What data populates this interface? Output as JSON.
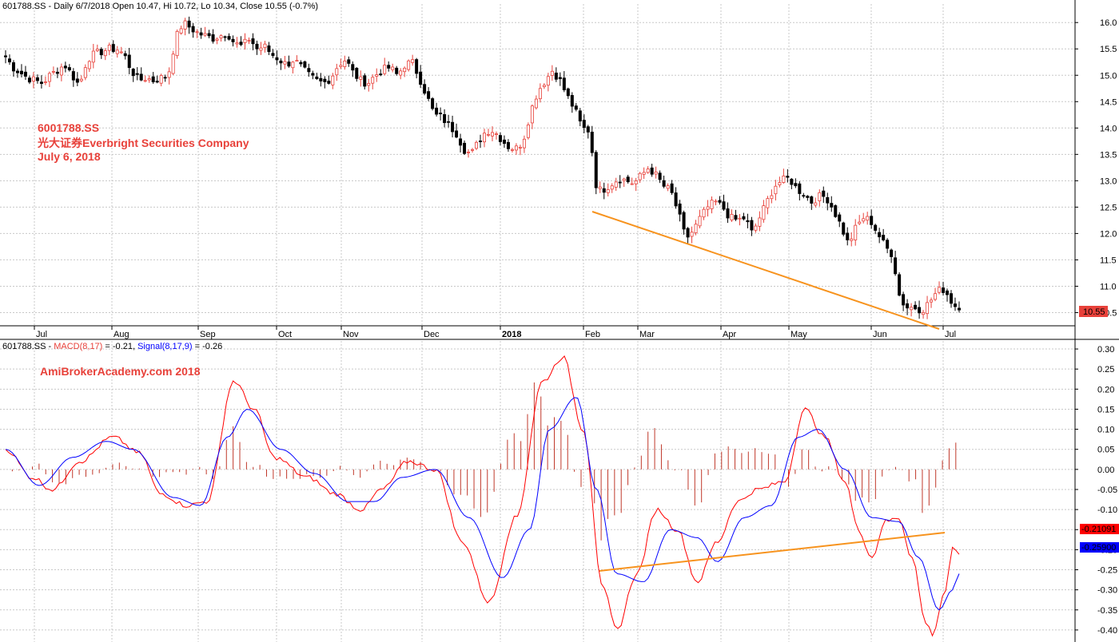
{
  "header": {
    "price_title": "601788.SS - Daily 6/7/2018 Open 10.47, Hi 10.72, Lo 10.34, Close 10.55 (-0.7%)",
    "macd_title_prefix": "601788.SS - ",
    "macd_label": "MACD(8,17)",
    "macd_value": " = -0.21, ",
    "signal_label": "Signal(8,17,9)",
    "signal_value": " = -0.26"
  },
  "annotations": {
    "line1": "6001788.SS",
    "line2": "光大证券Everbright Securities Company",
    "line3": "July 6, 2018",
    "watermark": "AmiBrokerAcademy.com  2018"
  },
  "badges": {
    "price": "10.55",
    "macd": "-0.21091",
    "signal": "-0.25900"
  },
  "colors": {
    "up": "#e8413a",
    "down": "#000000",
    "macd": "#ff0000",
    "signal": "#0000ff",
    "hist": "#c0392b",
    "trend": "#f7931e",
    "grid": "#c8c8c8"
  },
  "chart_data": [
    {
      "type": "candlestick",
      "title": "601788.SS - Daily 6/7/2018 Open 10.47, Hi 10.72, Lo 10.34, Close 10.55 (-0.7%)",
      "x_months": [
        "Jul",
        "Aug",
        "Sep",
        "Oct",
        "Nov",
        "Dec",
        "2018",
        "Feb",
        "Mar",
        "Apr",
        "May",
        "Jun",
        "Jul"
      ],
      "y_ticks": [
        10.5,
        11.0,
        11.5,
        12.0,
        12.5,
        13.0,
        13.5,
        14.0,
        14.5,
        15.0,
        15.5,
        16.0
      ],
      "ylim": [
        10.25,
        16.2
      ],
      "close_path": [
        15.35,
        15.15,
        15.05,
        14.95,
        14.9,
        14.85,
        15.0,
        15.1,
        15.2,
        15.0,
        14.8,
        15.3,
        15.4,
        15.45,
        15.5,
        15.5,
        15.4,
        15.1,
        14.9,
        14.95,
        14.9,
        14.95,
        15.0,
        15.7,
        16.0,
        15.9,
        15.8,
        15.75,
        15.7,
        15.75,
        15.8,
        15.6,
        15.55,
        15.7,
        15.5,
        15.55,
        15.4,
        15.3,
        15.2,
        15.3,
        15.15,
        15.0,
        14.9,
        14.85,
        14.95,
        15.2,
        15.3,
        15.05,
        14.9,
        14.85,
        15.0,
        15.1,
        15.15,
        15.0,
        15.2,
        15.25,
        14.95,
        14.6,
        14.25,
        14.2,
        14.05,
        13.9,
        13.6,
        13.5,
        13.75,
        13.95,
        13.95,
        13.8,
        13.65,
        13.6,
        13.75,
        14.3,
        14.7,
        14.9,
        15.1,
        14.9,
        14.6,
        14.35,
        14.0,
        13.95,
        12.8,
        12.85,
        12.95,
        13.05,
        13.0,
        12.95,
        13.1,
        13.25,
        13.1,
        12.9,
        12.8,
        12.4,
        11.9,
        12.05,
        12.3,
        12.5,
        12.6,
        12.5,
        12.3,
        12.25,
        12.3,
        12.0,
        12.3,
        12.6,
        12.9,
        13.0,
        13.05,
        12.85,
        12.75,
        12.6,
        12.7,
        12.7,
        12.45,
        12.15,
        11.8,
        12.1,
        12.3,
        12.25,
        12.0,
        11.75,
        11.6,
        10.75,
        10.6,
        10.6,
        10.55,
        10.7,
        10.9,
        10.95,
        10.7,
        10.55
      ],
      "annotations": [
        "6001788.SS",
        "光大证券Everbright Securities Company",
        "July 6, 2018"
      ],
      "last_value_badge": 10.55
    },
    {
      "type": "line",
      "title": "601788.SS - MACD(8,17) = -0.21, Signal(8,17,9) = -0.26",
      "x_months": [
        "Jul",
        "Aug",
        "Sep",
        "Oct",
        "Nov",
        "Dec",
        "2018",
        "Feb",
        "Mar",
        "Apr",
        "May",
        "Jun",
        "Jul"
      ],
      "y_ticks": [
        -0.4,
        -0.35,
        -0.3,
        -0.25,
        -0.2,
        -0.15,
        -0.1,
        -0.05,
        0.0,
        0.05,
        0.1,
        0.15,
        0.2,
        0.25,
        0.3
      ],
      "ylim": [
        -0.43,
        0.32
      ],
      "series": [
        {
          "name": "MACD(8,17)",
          "key_points": [
            [
              0,
              0.05
            ],
            [
              4,
              -0.02
            ],
            [
              7,
              -0.05
            ],
            [
              11,
              0.02
            ],
            [
              16,
              0.08
            ],
            [
              20,
              0.04
            ],
            [
              23,
              -0.06
            ],
            [
              27,
              -0.09
            ],
            [
              30,
              -0.08
            ],
            [
              34,
              0.22
            ],
            [
              37,
              0.15
            ],
            [
              40,
              0.03
            ],
            [
              45,
              -0.02
            ],
            [
              49,
              -0.06
            ],
            [
              53,
              -0.1
            ],
            [
              56,
              -0.05
            ],
            [
              60,
              0.02
            ],
            [
              64,
              0.0
            ],
            [
              68,
              -0.18
            ],
            [
              72,
              -0.33
            ],
            [
              76,
              -0.12
            ],
            [
              80,
              0.22
            ],
            [
              83,
              0.28
            ],
            [
              86,
              0.1
            ],
            [
              89,
              -0.3
            ],
            [
              91,
              -0.4
            ],
            [
              94,
              -0.26
            ],
            [
              97,
              -0.1
            ],
            [
              100,
              -0.15
            ],
            [
              103,
              -0.28
            ],
            [
              106,
              -0.18
            ],
            [
              109,
              -0.08
            ],
            [
              112,
              -0.05
            ],
            [
              116,
              -0.03
            ],
            [
              119,
              0.15
            ],
            [
              122,
              0.08
            ],
            [
              125,
              -0.03
            ],
            [
              127,
              -0.15
            ],
            [
              129,
              -0.22
            ],
            [
              131,
              -0.13
            ],
            [
              133,
              -0.12
            ],
            [
              135,
              -0.22
            ],
            [
              137,
              -0.38
            ],
            [
              138,
              -0.41
            ],
            [
              140,
              -0.3
            ],
            [
              141,
              -0.2
            ],
            [
              142,
              -0.21
            ]
          ]
        },
        {
          "name": "Signal(8,17,9)",
          "key_points": [
            [
              0,
              0.05
            ],
            [
              5,
              -0.04
            ],
            [
              10,
              0.03
            ],
            [
              15,
              0.07
            ],
            [
              19,
              0.05
            ],
            [
              25,
              -0.07
            ],
            [
              29,
              -0.09
            ],
            [
              33,
              0.08
            ],
            [
              36,
              0.15
            ],
            [
              41,
              0.05
            ],
            [
              46,
              -0.01
            ],
            [
              51,
              -0.08
            ],
            [
              55,
              -0.08
            ],
            [
              59,
              -0.02
            ],
            [
              64,
              0.0
            ],
            [
              69,
              -0.12
            ],
            [
              74,
              -0.27
            ],
            [
              78,
              -0.15
            ],
            [
              81,
              0.1
            ],
            [
              85,
              0.18
            ],
            [
              88,
              -0.05
            ],
            [
              91,
              -0.26
            ],
            [
              95,
              -0.28
            ],
            [
              99,
              -0.15
            ],
            [
              103,
              -0.17
            ],
            [
              106,
              -0.23
            ],
            [
              110,
              -0.12
            ],
            [
              114,
              -0.09
            ],
            [
              118,
              0.08
            ],
            [
              121,
              0.1
            ],
            [
              125,
              0.0
            ],
            [
              129,
              -0.12
            ],
            [
              133,
              -0.13
            ],
            [
              136,
              -0.22
            ],
            [
              139,
              -0.35
            ],
            [
              141,
              -0.3
            ],
            [
              142,
              -0.26
            ]
          ]
        },
        {
          "name": "histogram",
          "type": "bar",
          "value": "MACD - Signal"
        }
      ],
      "annotations": [
        "AmiBrokerAcademy.com  2018"
      ],
      "last_value_badges": {
        "MACD(8,17)": -0.21091,
        "Signal(8,17,9)": -0.259
      }
    }
  ]
}
